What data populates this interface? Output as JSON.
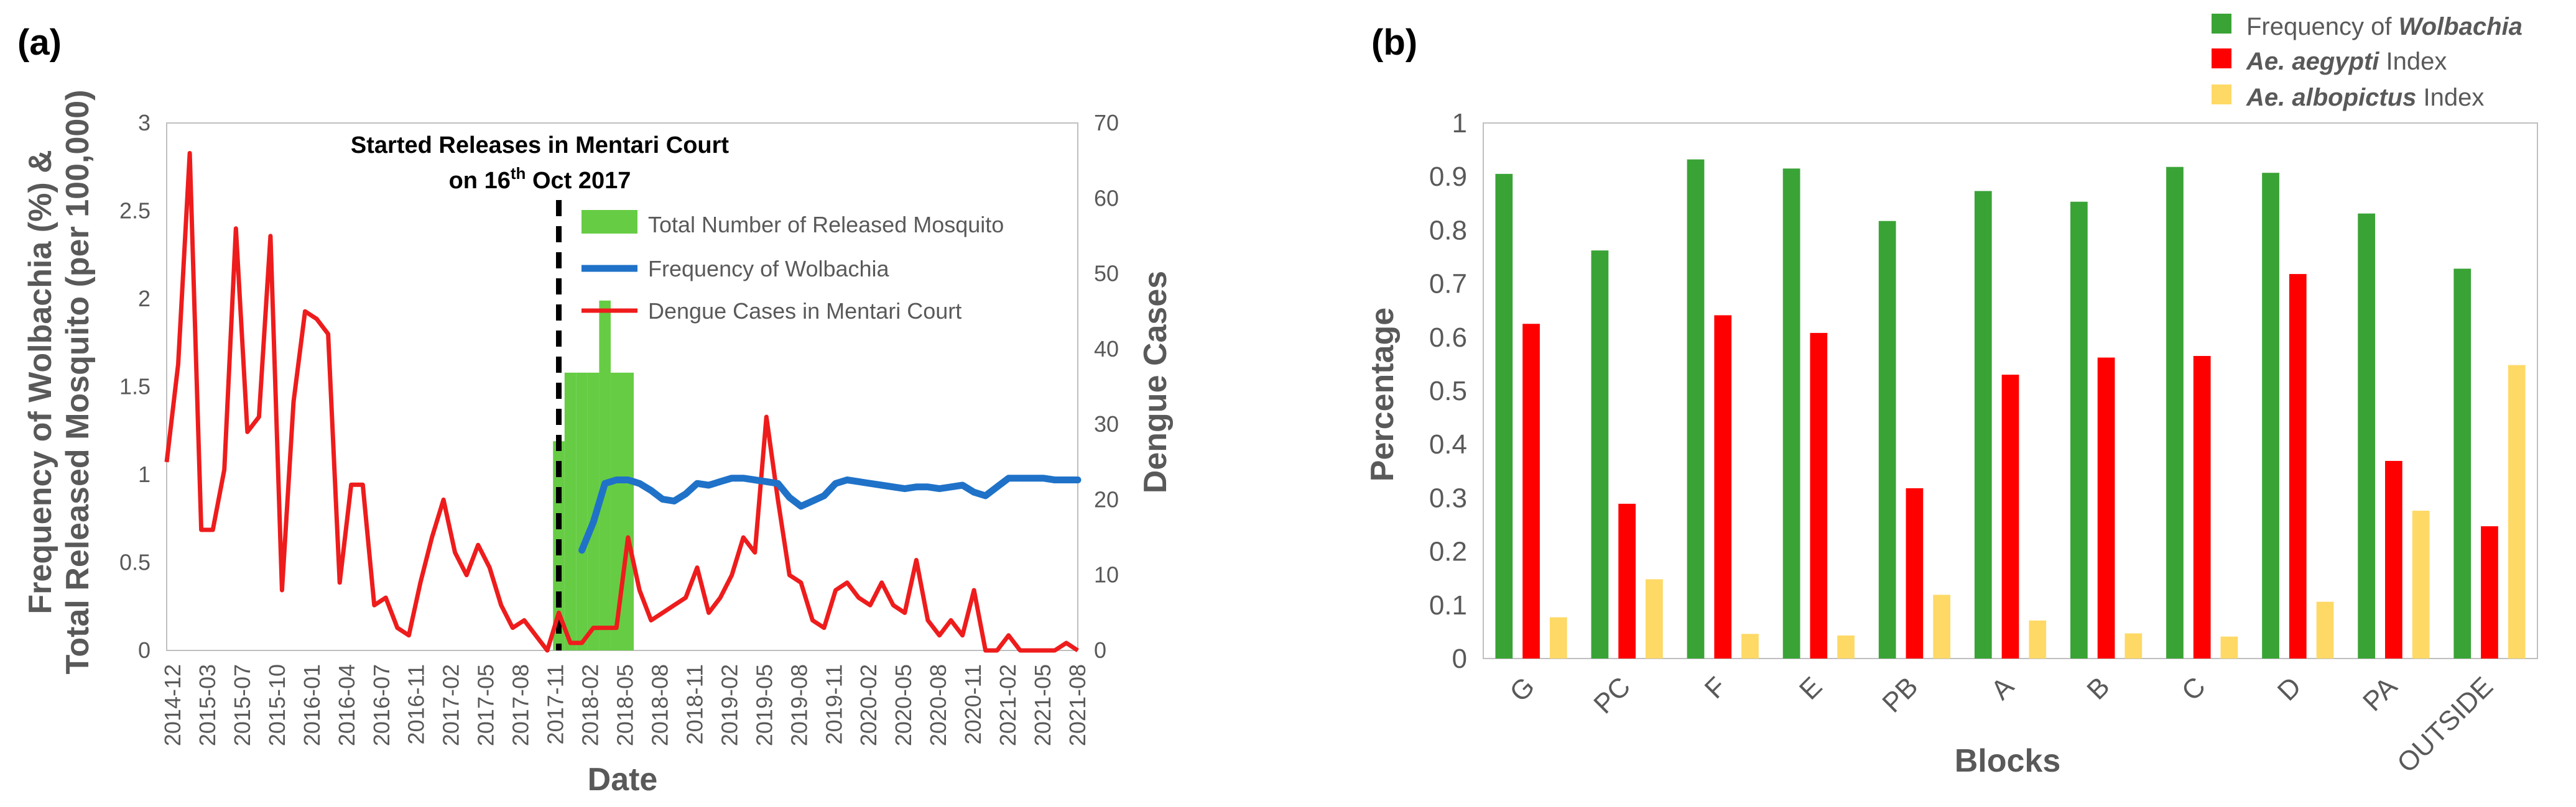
{
  "chart_data": [
    {
      "panel": "(a)",
      "type": "line",
      "xlabel": "Date",
      "ylabel_left_line1": "Frequency of Wolbachia (%) &",
      "ylabel_left_line2": "Total Released Mosquito (per 100,000)",
      "ylabel_right": "Dengue Cases",
      "ylim_left": [
        0,
        3
      ],
      "ylim_right": [
        0,
        70
      ],
      "yticks_left": [
        "0",
        "0.5",
        "1",
        "1.5",
        "2",
        "2.5",
        "3"
      ],
      "yticks_right": [
        "0",
        "10",
        "20",
        "30",
        "40",
        "50",
        "60",
        "70"
      ],
      "x_tick_labels": [
        "2014-12",
        "2015-03",
        "2015-07",
        "2015-10",
        "2016-01",
        "2016-04",
        "2016-07",
        "2016-11",
        "2017-02",
        "2017-05",
        "2017-08",
        "2017-11",
        "2018-02",
        "2018-05",
        "2018-08",
        "2018-11",
        "2019-02",
        "2019-05",
        "2019-08",
        "2019-11",
        "2020-02",
        "2020-05",
        "2020-08",
        "2020-11",
        "2021-02",
        "2021-05",
        "2021-08"
      ],
      "annotation": {
        "line1": "Started Releases in Mentari Court",
        "line2_prefix": "on 16",
        "line2_sup": "th",
        "line2_suffix": " Oct 2017",
        "at_month_index": 34
      },
      "legend": [
        "Total Number of Released Mosquito",
        "Frequency of Wolbachia",
        "Dengue Cases in Mentari Court"
      ],
      "series": [
        {
          "name": "Total Number of Released Mosquito",
          "kind": "bar",
          "axis": "left",
          "color": "#66cc44",
          "start_index": 34,
          "values": [
            1.19,
            1.58,
            1.58,
            1.58,
            1.99,
            1.58,
            1.58
          ]
        },
        {
          "name": "Frequency of Wolbachia",
          "kind": "line",
          "axis": "left",
          "color": "#1f72c8",
          "start_index": 36,
          "values": [
            0.57,
            0.73,
            0.95,
            0.97,
            0.97,
            0.95,
            0.91,
            0.86,
            0.85,
            0.89,
            0.95,
            0.94,
            0.96,
            0.98,
            0.98,
            0.97,
            0.96,
            0.95,
            0.87,
            0.82,
            0.85,
            0.88,
            0.95,
            0.97,
            0.96,
            0.95,
            0.94,
            0.93,
            0.92,
            0.93,
            0.93,
            0.92,
            0.93,
            0.94,
            0.9,
            0.88,
            0.93,
            0.98,
            0.98,
            0.98,
            0.98,
            0.97,
            0.97,
            0.97
          ]
        },
        {
          "name": "Dengue Cases in Mentari Court",
          "kind": "line",
          "axis": "right",
          "color": "#ee1c1c",
          "start_index": 0,
          "values": [
            25,
            38,
            66,
            16,
            16,
            24,
            56,
            29,
            31,
            55,
            8,
            33,
            45,
            44,
            42,
            9,
            22,
            22,
            6,
            7,
            3,
            2,
            9,
            15,
            20,
            13,
            10,
            14,
            11,
            6,
            3,
            4,
            2,
            0,
            5,
            1,
            1,
            3,
            3,
            3,
            15,
            8,
            4,
            5,
            6,
            7,
            11,
            5,
            7,
            10,
            15,
            13,
            31,
            20,
            10,
            9,
            4,
            3,
            8,
            9,
            7,
            6,
            9,
            6,
            5,
            12,
            4,
            2,
            4,
            2,
            8,
            0,
            0,
            2,
            0,
            0,
            0,
            0,
            1,
            0
          ]
        }
      ]
    },
    {
      "panel": "(b)",
      "type": "bar",
      "xlabel": "Blocks",
      "ylabel": "Percentage",
      "ylim": [
        0,
        1
      ],
      "yticks": [
        "0",
        "0.1",
        "0.2",
        "0.3",
        "0.4",
        "0.5",
        "0.6",
        "0.7",
        "0.8",
        "0.9",
        "1"
      ],
      "categories": [
        "G",
        "PC",
        "F",
        "E",
        "PB",
        "A",
        "B",
        "C",
        "D",
        "PA",
        "OUTSIDE"
      ],
      "legend": [
        {
          "prefix": "Frequency of ",
          "italic": "Wolbachia",
          "suffix": ""
        },
        {
          "prefix": "",
          "italic": "Ae. aegypti",
          "suffix": " Index"
        },
        {
          "prefix": "",
          "italic": "Ae. albopictus",
          "suffix": " Index"
        }
      ],
      "series": [
        {
          "name": "Frequency of Wolbachia",
          "color": "#3aa336",
          "values": [
            0.905,
            0.762,
            0.932,
            0.915,
            0.817,
            0.873,
            0.853,
            0.918,
            0.907,
            0.831,
            0.728
          ]
        },
        {
          "name": "Ae. aegypti Index",
          "color": "#ff0000",
          "values": [
            0.625,
            0.289,
            0.641,
            0.608,
            0.318,
            0.53,
            0.562,
            0.565,
            0.718,
            0.369,
            0.247
          ]
        },
        {
          "name": "Ae. albopictus Index",
          "color": "#ffd966",
          "values": [
            0.077,
            0.148,
            0.046,
            0.043,
            0.119,
            0.071,
            0.047,
            0.041,
            0.106,
            0.276,
            0.548
          ]
        }
      ]
    }
  ]
}
